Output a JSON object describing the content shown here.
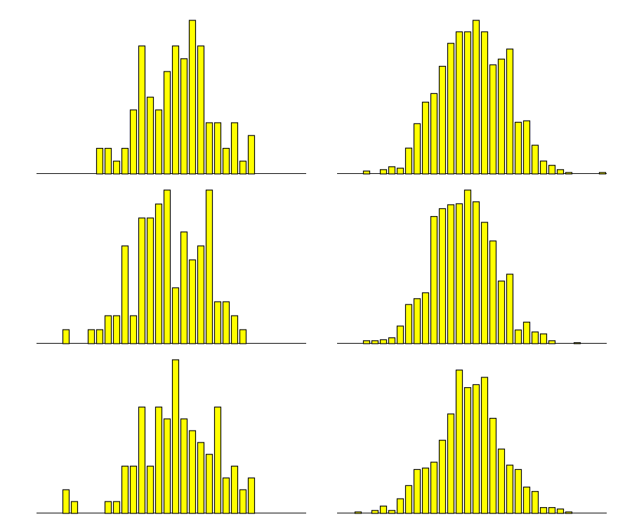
{
  "chart_data": [
    {
      "type": "bar",
      "position": "top-left",
      "color": "#ffff00",
      "edge_color": "#000000",
      "values": [
        0,
        0,
        0,
        0,
        0,
        0,
        0,
        2,
        2,
        1,
        2,
        5,
        10,
        6,
        5,
        8,
        10,
        9,
        12,
        10,
        4,
        4,
        2,
        4,
        1,
        3,
        0,
        0,
        0,
        0,
        0,
        0
      ],
      "ylim": [
        0,
        12
      ]
    },
    {
      "type": "bar",
      "position": "top-right",
      "color": "#ffff00",
      "edge_color": "#000000",
      "values": [
        0,
        0,
        0,
        2,
        0,
        3,
        5,
        4,
        18,
        35,
        50,
        56,
        75,
        91,
        99,
        99,
        107,
        99,
        76,
        80,
        87,
        36,
        37,
        20,
        9,
        6,
        3,
        1,
        0,
        0,
        0,
        1
      ],
      "ylim": [
        0,
        107
      ]
    },
    {
      "type": "bar",
      "position": "middle-left",
      "color": "#ffff00",
      "edge_color": "#000000",
      "values": [
        0,
        0,
        0,
        1,
        0,
        0,
        1,
        1,
        2,
        2,
        7,
        2,
        9,
        9,
        10,
        11,
        4,
        8,
        6,
        7,
        11,
        3,
        3,
        2,
        1,
        0,
        0,
        0,
        0,
        0,
        0,
        0
      ],
      "ylim": [
        0,
        11
      ]
    },
    {
      "type": "bar",
      "position": "middle-right",
      "color": "#ffff00",
      "edge_color": "#000000",
      "values": [
        0,
        0,
        0,
        3,
        3,
        4,
        6,
        18,
        40,
        46,
        52,
        130,
        138,
        142,
        143,
        157,
        145,
        124,
        105,
        64,
        71,
        14,
        22,
        12,
        10,
        3,
        0,
        0,
        1,
        0,
        0,
        0
      ],
      "ylim": [
        0,
        157
      ]
    },
    {
      "type": "bar",
      "position": "bottom-left",
      "color": "#ffff00",
      "edge_color": "#000000",
      "values": [
        0,
        0,
        0,
        2,
        1,
        0,
        0,
        0,
        1,
        1,
        4,
        4,
        9,
        4,
        9,
        8,
        13,
        8,
        7,
        6,
        5,
        9,
        3,
        4,
        2,
        3,
        0,
        0,
        0,
        0,
        0,
        0
      ],
      "ylim": [
        0,
        13
      ]
    },
    {
      "type": "bar",
      "position": "bottom-right",
      "color": "#ffff00",
      "edge_color": "#000000",
      "values": [
        0,
        0,
        1,
        0,
        2,
        5,
        2,
        10,
        19,
        30,
        31,
        35,
        50,
        68,
        98,
        86,
        88,
        93,
        65,
        44,
        33,
        30,
        18,
        15,
        4,
        4,
        3,
        1,
        0,
        0,
        0,
        0
      ],
      "ylim": [
        0,
        105
      ]
    }
  ]
}
